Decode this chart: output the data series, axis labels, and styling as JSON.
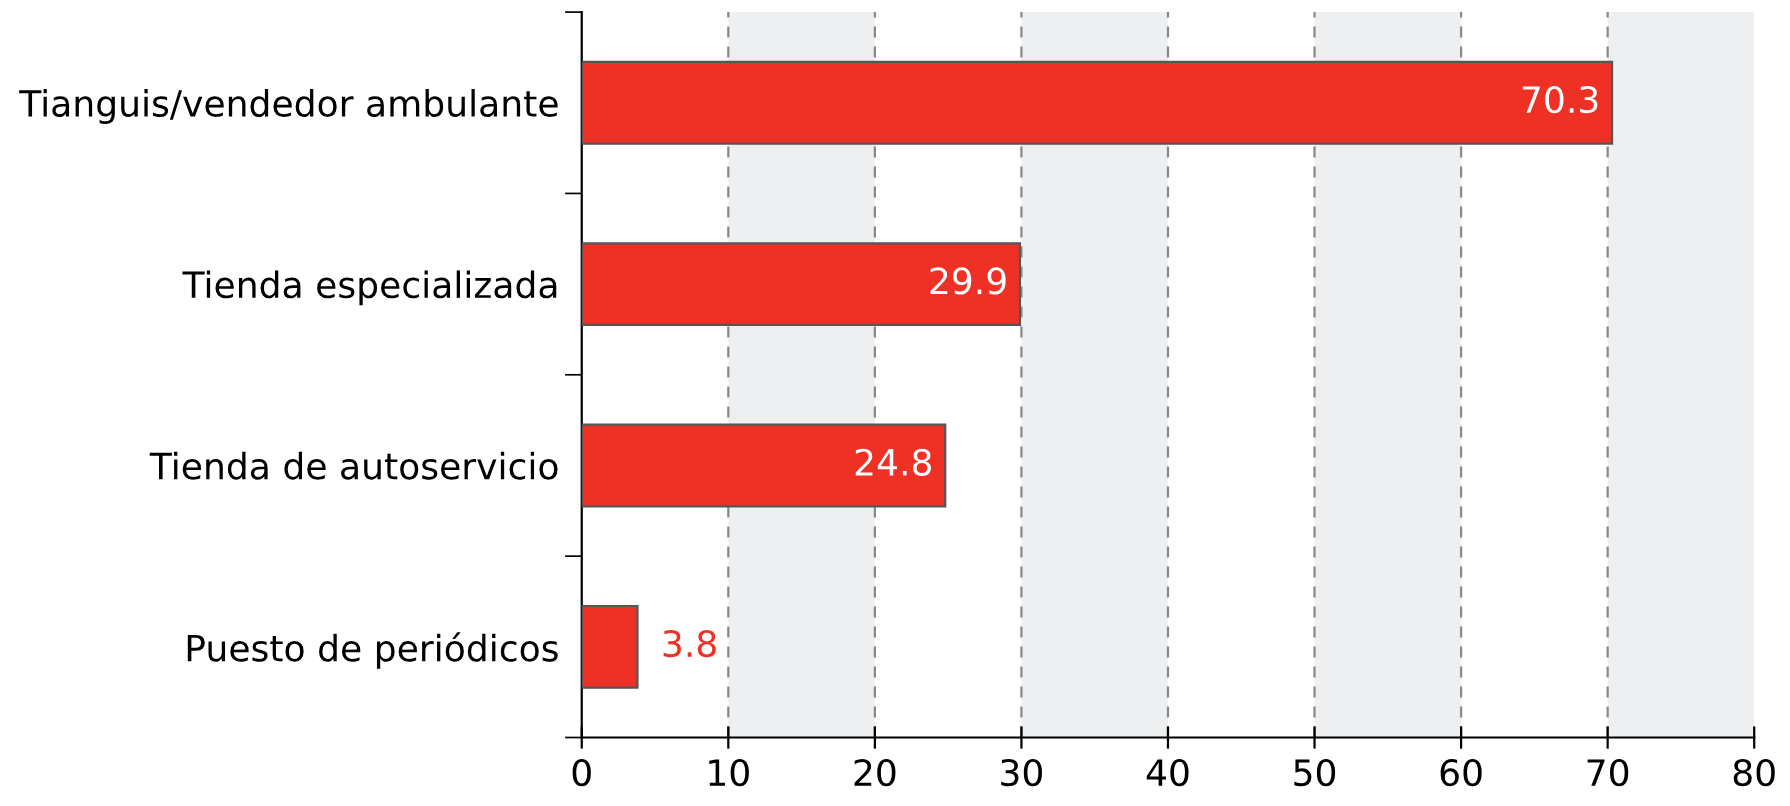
{
  "chart_data": {
    "type": "bar",
    "orientation": "horizontal",
    "categories": [
      "Tianguis/vendedor ambulante",
      "Tienda especializada",
      "Tienda de autoservicio",
      "Puesto de periódicos"
    ],
    "values": [
      70.3,
      29.9,
      24.8,
      3.8
    ],
    "color": "#ee3124",
    "xlim": [
      0,
      80
    ],
    "xticks": [
      0,
      10,
      20,
      30,
      40,
      50,
      60,
      70,
      80
    ],
    "grid": "x",
    "data_labels": true,
    "bands": [
      {
        "axis": "x",
        "from": 10,
        "to": 20,
        "color": "#eeeff1"
      },
      {
        "axis": "x",
        "from": 30,
        "to": 40,
        "color": "#eeeff1"
      },
      {
        "axis": "x",
        "from": 50,
        "to": 60,
        "color": "#eeeff1"
      },
      {
        "axis": "x",
        "from": 70,
        "to": 80,
        "color": "#eeeff1"
      }
    ]
  }
}
